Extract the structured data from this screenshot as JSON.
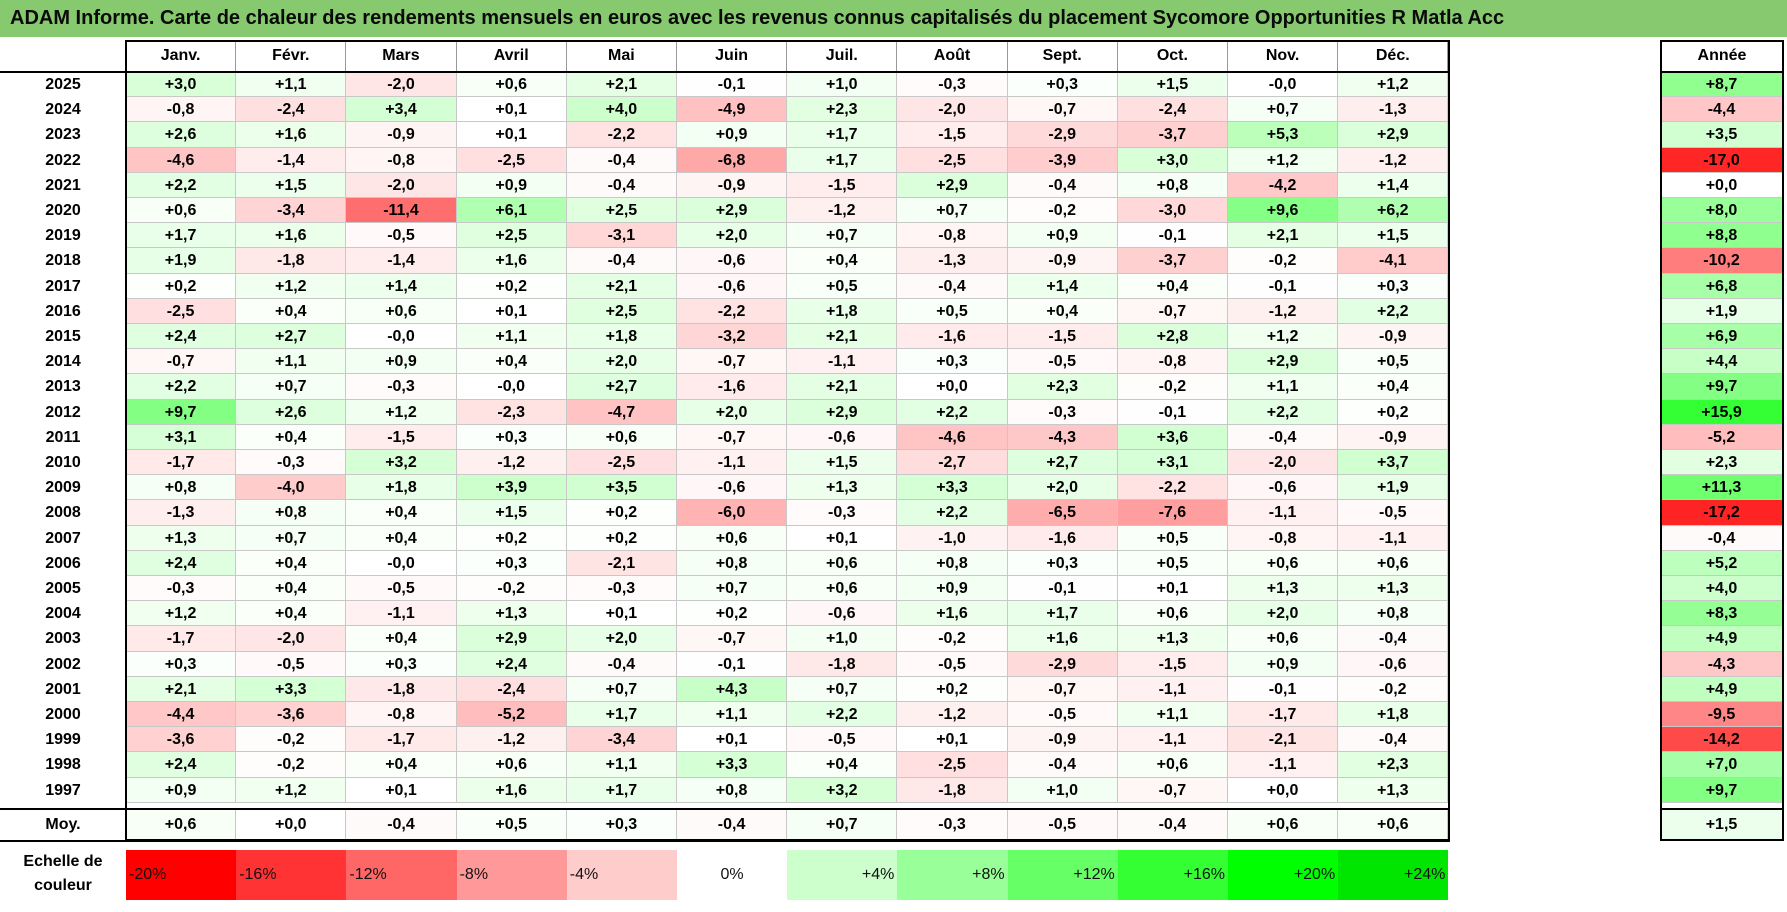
{
  "title": "ADAM Informe. Carte de chaleur des rendements mensuels en euros avec les revenus connus capitalisés du placement Sycomore Opportunities R Matla Acc",
  "colors": {
    "title_bg": "#86c96e",
    "negative_max": "#ff0000",
    "positive_max": "#00ff00",
    "neutral": "#ffffff"
  },
  "chart_data": {
    "type": "heatmap",
    "title": "ADAM Informe. Carte de chaleur des rendements mensuels en euros avec les revenus connus capitalisés du placement Sycomore Opportunities R Matla Acc",
    "columns": [
      "Janv.",
      "Févr.",
      "Mars",
      "Avril",
      "Mai",
      "Juin",
      "Juil.",
      "Août",
      "Sept.",
      "Oct.",
      "Nov.",
      "Déc."
    ],
    "year_column": "Année",
    "rows": [
      {
        "year": "2025",
        "values": [
          "+3,0",
          "+1,1",
          "-2,0",
          "+0,6",
          "+2,1",
          "-0,1",
          "+1,0",
          "-0,3",
          "+0,3",
          "+1,5",
          "-0,0",
          "+1,2"
        ],
        "annual": "+8,7"
      },
      {
        "year": "2024",
        "values": [
          "-0,8",
          "-2,4",
          "+3,4",
          "+0,1",
          "+4,0",
          "-4,9",
          "+2,3",
          "-2,0",
          "-0,7",
          "-2,4",
          "+0,7",
          "-1,3"
        ],
        "annual": "-4,4"
      },
      {
        "year": "2023",
        "values": [
          "+2,6",
          "+1,6",
          "-0,9",
          "+0,1",
          "-2,2",
          "+0,9",
          "+1,7",
          "-1,5",
          "-2,9",
          "-3,7",
          "+5,3",
          "+2,9"
        ],
        "annual": "+3,5"
      },
      {
        "year": "2022",
        "values": [
          "-4,6",
          "-1,4",
          "-0,8",
          "-2,5",
          "-0,4",
          "-6,8",
          "+1,7",
          "-2,5",
          "-3,9",
          "+3,0",
          "+1,2",
          "-1,2"
        ],
        "annual": "-17,0"
      },
      {
        "year": "2021",
        "values": [
          "+2,2",
          "+1,5",
          "-2,0",
          "+0,9",
          "-0,4",
          "-0,9",
          "-1,5",
          "+2,9",
          "-0,4",
          "+0,8",
          "-4,2",
          "+1,4"
        ],
        "annual": "+0,0"
      },
      {
        "year": "2020",
        "values": [
          "+0,6",
          "-3,4",
          "-11,4",
          "+6,1",
          "+2,5",
          "+2,9",
          "-1,2",
          "+0,7",
          "-0,2",
          "-3,0",
          "+9,6",
          "+6,2"
        ],
        "annual": "+8,0"
      },
      {
        "year": "2019",
        "values": [
          "+1,7",
          "+1,6",
          "-0,5",
          "+2,5",
          "-3,1",
          "+2,0",
          "+0,7",
          "-0,8",
          "+0,9",
          "-0,1",
          "+2,1",
          "+1,5"
        ],
        "annual": "+8,8"
      },
      {
        "year": "2018",
        "values": [
          "+1,9",
          "-1,8",
          "-1,4",
          "+1,6",
          "-0,4",
          "-0,6",
          "+0,4",
          "-1,3",
          "-0,9",
          "-3,7",
          "-0,2",
          "-4,1"
        ],
        "annual": "-10,2"
      },
      {
        "year": "2017",
        "values": [
          "+0,2",
          "+1,2",
          "+1,4",
          "+0,2",
          "+2,1",
          "-0,6",
          "+0,5",
          "-0,4",
          "+1,4",
          "+0,4",
          "-0,1",
          "+0,3"
        ],
        "annual": "+6,8"
      },
      {
        "year": "2016",
        "values": [
          "-2,5",
          "+0,4",
          "+0,6",
          "+0,1",
          "+2,5",
          "-2,2",
          "+1,8",
          "+0,5",
          "+0,4",
          "-0,7",
          "-1,2",
          "+2,2"
        ],
        "annual": "+1,9"
      },
      {
        "year": "2015",
        "values": [
          "+2,4",
          "+2,7",
          "-0,0",
          "+1,1",
          "+1,8",
          "-3,2",
          "+2,1",
          "-1,6",
          "-1,5",
          "+2,8",
          "+1,2",
          "-0,9"
        ],
        "annual": "+6,9"
      },
      {
        "year": "2014",
        "values": [
          "-0,7",
          "+1,1",
          "+0,9",
          "+0,4",
          "+2,0",
          "-0,7",
          "-1,1",
          "+0,3",
          "-0,5",
          "-0,8",
          "+2,9",
          "+0,5"
        ],
        "annual": "+4,4"
      },
      {
        "year": "2013",
        "values": [
          "+2,2",
          "+0,7",
          "-0,3",
          "-0,0",
          "+2,7",
          "-1,6",
          "+2,1",
          "+0,0",
          "+2,3",
          "-0,2",
          "+1,1",
          "+0,4"
        ],
        "annual": "+9,7"
      },
      {
        "year": "2012",
        "values": [
          "+9,7",
          "+2,6",
          "+1,2",
          "-2,3",
          "-4,7",
          "+2,0",
          "+2,9",
          "+2,2",
          "-0,3",
          "-0,1",
          "+2,2",
          "+0,2"
        ],
        "annual": "+15,9"
      },
      {
        "year": "2011",
        "values": [
          "+3,1",
          "+0,4",
          "-1,5",
          "+0,3",
          "+0,6",
          "-0,7",
          "-0,6",
          "-4,6",
          "-4,3",
          "+3,6",
          "-0,4",
          "-0,9"
        ],
        "annual": "-5,2"
      },
      {
        "year": "2010",
        "values": [
          "-1,7",
          "-0,3",
          "+3,2",
          "-1,2",
          "-2,5",
          "-1,1",
          "+1,5",
          "-2,7",
          "+2,7",
          "+3,1",
          "-2,0",
          "+3,7"
        ],
        "annual": "+2,3"
      },
      {
        "year": "2009",
        "values": [
          "+0,8",
          "-4,0",
          "+1,8",
          "+3,9",
          "+3,5",
          "-0,6",
          "+1,3",
          "+3,3",
          "+2,0",
          "-2,2",
          "-0,6",
          "+1,9"
        ],
        "annual": "+11,3"
      },
      {
        "year": "2008",
        "values": [
          "-1,3",
          "+0,8",
          "+0,4",
          "+1,5",
          "+0,2",
          "-6,0",
          "-0,3",
          "+2,2",
          "-6,5",
          "-7,6",
          "-1,1",
          "-0,5"
        ],
        "annual": "-17,2"
      },
      {
        "year": "2007",
        "values": [
          "+1,3",
          "+0,7",
          "+0,4",
          "+0,2",
          "+0,2",
          "+0,6",
          "+0,1",
          "-1,0",
          "-1,6",
          "+0,5",
          "-0,8",
          "-1,1"
        ],
        "annual": "-0,4"
      },
      {
        "year": "2006",
        "values": [
          "+2,4",
          "+0,4",
          "-0,0",
          "+0,3",
          "-2,1",
          "+0,8",
          "+0,6",
          "+0,8",
          "+0,3",
          "+0,5",
          "+0,6",
          "+0,6"
        ],
        "annual": "+5,2"
      },
      {
        "year": "2005",
        "values": [
          "-0,3",
          "+0,4",
          "-0,5",
          "-0,2",
          "-0,3",
          "+0,7",
          "+0,6",
          "+0,9",
          "-0,1",
          "+0,1",
          "+1,3",
          "+1,3"
        ],
        "annual": "+4,0"
      },
      {
        "year": "2004",
        "values": [
          "+1,2",
          "+0,4",
          "-1,1",
          "+1,3",
          "+0,1",
          "+0,2",
          "-0,6",
          "+1,6",
          "+1,7",
          "+0,6",
          "+2,0",
          "+0,8"
        ],
        "annual": "+8,3"
      },
      {
        "year": "2003",
        "values": [
          "-1,7",
          "-2,0",
          "+0,4",
          "+2,9",
          "+2,0",
          "-0,7",
          "+1,0",
          "-0,2",
          "+1,6",
          "+1,3",
          "+0,6",
          "-0,4"
        ],
        "annual": "+4,9"
      },
      {
        "year": "2002",
        "values": [
          "+0,3",
          "-0,5",
          "+0,3",
          "+2,4",
          "-0,4",
          "-0,1",
          "-1,8",
          "-0,5",
          "-2,9",
          "-1,5",
          "+0,9",
          "-0,6"
        ],
        "annual": "-4,3"
      },
      {
        "year": "2001",
        "values": [
          "+2,1",
          "+3,3",
          "-1,8",
          "-2,4",
          "+0,7",
          "+4,3",
          "+0,7",
          "+0,2",
          "-0,7",
          "-1,1",
          "-0,1",
          "-0,2"
        ],
        "annual": "+4,9"
      },
      {
        "year": "2000",
        "values": [
          "-4,4",
          "-3,6",
          "-0,8",
          "-5,2",
          "+1,7",
          "+1,1",
          "+2,2",
          "-1,2",
          "-0,5",
          "+1,1",
          "-1,7",
          "+1,8"
        ],
        "annual": "-9,5"
      },
      {
        "year": "1999",
        "values": [
          "-3,6",
          "-0,2",
          "-1,7",
          "-1,2",
          "-3,4",
          "+0,1",
          "-0,5",
          "+0,1",
          "-0,9",
          "-1,1",
          "-2,1",
          "-0,4"
        ],
        "annual": "-14,2"
      },
      {
        "year": "1998",
        "values": [
          "+2,4",
          "-0,2",
          "+0,4",
          "+0,6",
          "+1,1",
          "+3,3",
          "+0,4",
          "-2,5",
          "-0,4",
          "+0,6",
          "-1,1",
          "+2,3"
        ],
        "annual": "+7,0"
      },
      {
        "year": "1997",
        "values": [
          "+0,9",
          "+1,2",
          "+0,1",
          "+1,6",
          "+1,7",
          "+0,8",
          "+3,2",
          "-1,8",
          "+1,0",
          "-0,7",
          "+0,0",
          "+1,3"
        ],
        "annual": "+9,7"
      }
    ],
    "average": {
      "label": "Moy.",
      "values": [
        "+0,6",
        "+0,0",
        "-0,4",
        "+0,5",
        "+0,3",
        "-0,4",
        "+0,7",
        "-0,3",
        "-0,5",
        "-0,4",
        "+0,6",
        "+0,6"
      ],
      "annual": "+1,5"
    },
    "color_scale": {
      "label": "Echelle de couleur",
      "stops": [
        {
          "label": "-20%",
          "value": -20,
          "color": "#ff0000"
        },
        {
          "label": "-16%",
          "value": -16,
          "color": "#ff3333"
        },
        {
          "label": "-12%",
          "value": -12,
          "color": "#ff6666"
        },
        {
          "label": "-8%",
          "value": -8,
          "color": "#ff9999"
        },
        {
          "label": "-4%",
          "value": -4,
          "color": "#ffcccc"
        },
        {
          "label": "0%",
          "value": 0,
          "color": "#ffffff"
        },
        {
          "label": "+4%",
          "value": 4,
          "color": "#ccffcc"
        },
        {
          "label": "+8%",
          "value": 8,
          "color": "#99ff99"
        },
        {
          "label": "+12%",
          "value": 12,
          "color": "#66ff66"
        },
        {
          "label": "+16%",
          "value": 16,
          "color": "#33ff33"
        },
        {
          "label": "+20%",
          "value": 20,
          "color": "#00ff00"
        },
        {
          "label": "+24%",
          "value": 24,
          "color": "#00e600"
        }
      ]
    }
  }
}
